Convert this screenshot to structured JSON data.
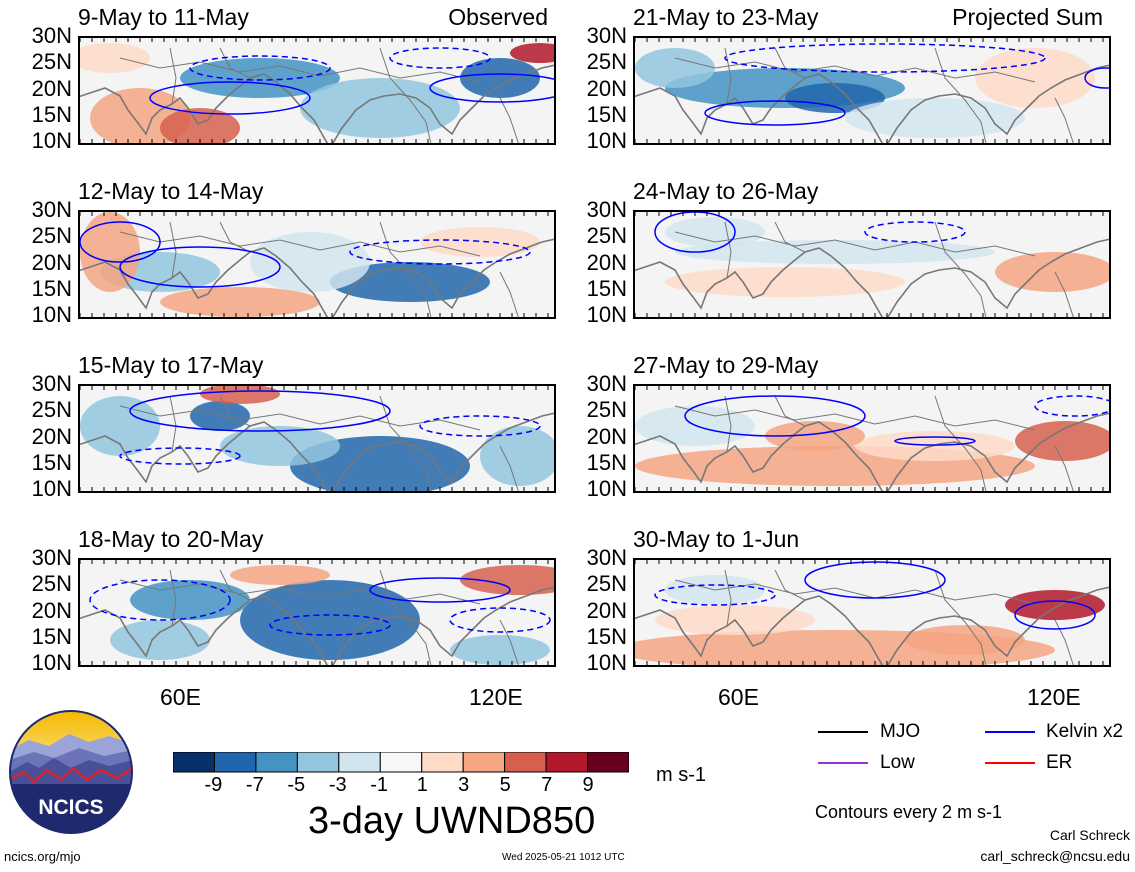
{
  "panels": [
    {
      "title": "9-May to 11-May",
      "label": "Observed"
    },
    {
      "title": "12-May to 14-May",
      "label": ""
    },
    {
      "title": "15-May to 17-May",
      "label": ""
    },
    {
      "title": "18-May to 20-May",
      "label": ""
    },
    {
      "title": "21-May to 23-May",
      "label": "Projected Sum"
    },
    {
      "title": "24-May to 26-May",
      "label": ""
    },
    {
      "title": "27-May to 29-May",
      "label": ""
    },
    {
      "title": "30-May to 1-Jun",
      "label": ""
    }
  ],
  "lat_labels": [
    "30N",
    "25N",
    "20N",
    "15N",
    "10N"
  ],
  "lon_labels": [
    "60E",
    "120E"
  ],
  "colorbar": {
    "colors": [
      "#08306b",
      "#2166ac",
      "#4393c3",
      "#92c5de",
      "#d1e5f0",
      "#f7f7f7",
      "#fddbc7",
      "#f4a582",
      "#d6604d",
      "#b2182b",
      "#67001f"
    ],
    "ticks": [
      "-9",
      "-7",
      "-5",
      "-3",
      "-1",
      "1",
      "3",
      "5",
      "7",
      "9"
    ],
    "units": "m s-1"
  },
  "title": "3-day UWND850",
  "legend": {
    "items": [
      {
        "label": "MJO",
        "color": "#000000"
      },
      {
        "label": "Kelvin x2",
        "color": "#0000ff"
      },
      {
        "label": "Low",
        "color": "#9932cc"
      },
      {
        "label": "ER",
        "color": "#ff0000"
      }
    ],
    "contours_note": "Contours every 2 m s-1"
  },
  "logo_text": "NCICS",
  "footer": {
    "left": "ncics.org/mjo",
    "center": "Wed 2025-05-21 1012 UTC",
    "credit_name": "Carl Schreck",
    "credit_email": "carl_schreck@ncsu.edu"
  },
  "colors": {
    "positive": "#d6604d",
    "negative": "#2166ac",
    "coast": "#777777",
    "kelvin": "#0000ff"
  }
}
